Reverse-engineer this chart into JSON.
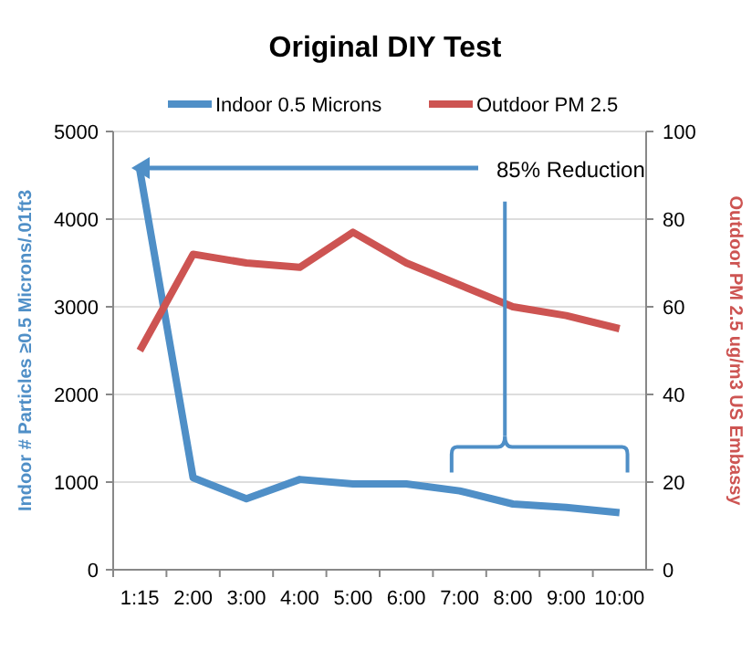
{
  "chart_data": {
    "type": "line",
    "title": "Original DIY Test",
    "ylabel": "Indoor # Particles ≥0.5 Microns/.01ft3",
    "y2label": "Outdoor PM 2.5 ug/m3 US Embassy",
    "categories": [
      "1:15",
      "2:00",
      "3:00",
      "4:00",
      "5:00",
      "6:00",
      "7:00",
      "8:00",
      "9:00",
      "10:00"
    ],
    "series": [
      {
        "name": "Indoor 0.5 Microns",
        "color": "#4f8fc7",
        "values": [
          4560,
          1050,
          810,
          1030,
          980,
          980,
          900,
          750,
          710,
          650
        ]
      },
      {
        "name": "Outdoor PM 2.5",
        "color": "#cd5452",
        "axis": "y2",
        "values": [
          50,
          72,
          70,
          69,
          77,
          70,
          65,
          60,
          58,
          55
        ]
      }
    ],
    "ylim": [
      0,
      5000
    ],
    "yticks": [
      0,
      1000,
      2000,
      3000,
      4000,
      5000
    ],
    "y2lim": [
      0,
      100
    ],
    "y2ticks": [
      0,
      20,
      40,
      60,
      80,
      100
    ],
    "grid": "y",
    "legend": "top",
    "line_style": "solid",
    "annotations": [
      "85% Reduction"
    ]
  }
}
